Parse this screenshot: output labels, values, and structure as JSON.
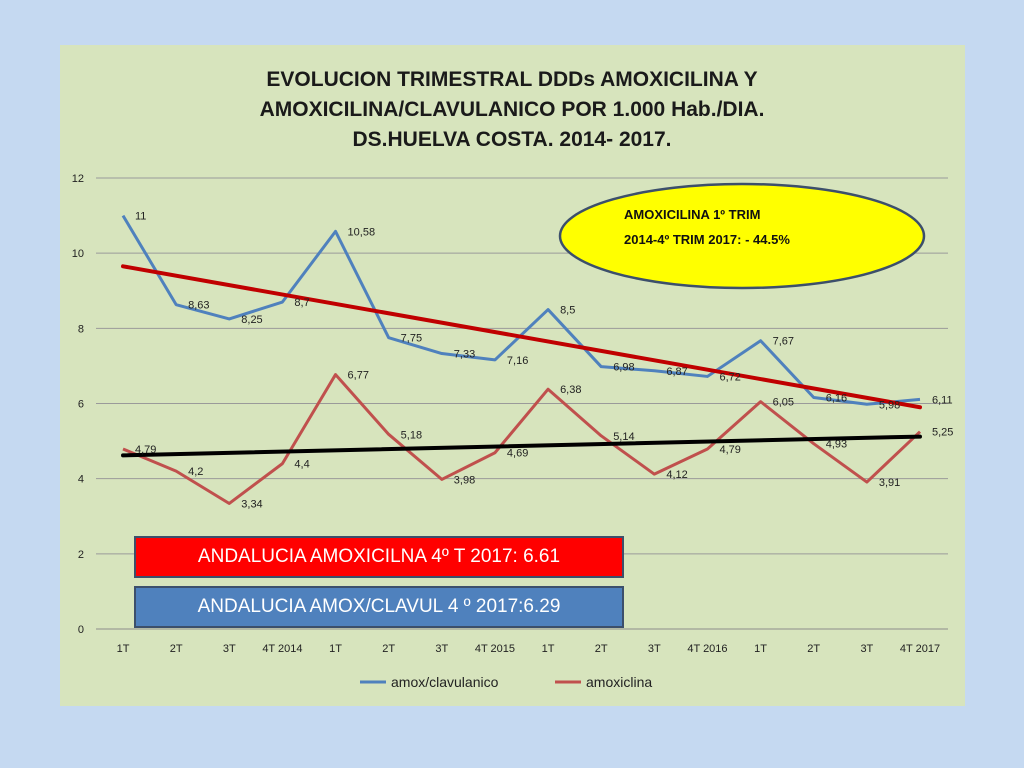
{
  "chart_data": {
    "type": "line",
    "title_lines": [
      "EVOLUCION TRIMESTRAL DDDs AMOXICILINA Y",
      "AMOXICILINA/CLAVULANICO POR 1.000 Hab./DIA.",
      "DS.HUELVA COSTA. 2014- 2017."
    ],
    "categories": [
      "1T",
      "2T",
      "3T",
      "4T 2014",
      "1T",
      "2T",
      "3T",
      "4T 2015",
      "1T",
      "2T",
      "3T",
      "4T 2016",
      "1T",
      "2T",
      "3T",
      "4T 2017"
    ],
    "ylim": [
      0,
      12
    ],
    "yticks": [
      0,
      2,
      4,
      6,
      8,
      10,
      12
    ],
    "grid": true,
    "legend_position": "bottom",
    "series": [
      {
        "name": "amox/clavulanico",
        "color": "#4f81bd",
        "values": [
          11,
          8.63,
          8.25,
          8.7,
          10.58,
          7.75,
          7.33,
          7.16,
          8.5,
          6.98,
          6.87,
          6.72,
          7.67,
          6.16,
          5.98,
          6.11
        ],
        "labels": [
          "11",
          "8,63",
          "8,25",
          "8,7",
          "10,58",
          "7,75",
          "7,33",
          "7,16",
          "8,5",
          "6,98",
          "6,87",
          "6,72",
          "7,67",
          "6,16",
          "5,98",
          "6,11"
        ]
      },
      {
        "name": "amoxiclina",
        "color": "#c0504d",
        "values": [
          4.79,
          4.2,
          3.34,
          4.4,
          6.77,
          5.18,
          3.98,
          4.69,
          6.38,
          5.14,
          4.12,
          4.79,
          6.05,
          4.93,
          3.91,
          5.25
        ],
        "labels": [
          "4,79",
          "4,2",
          "3,34",
          "4,4",
          "6,77",
          "5,18",
          "3,98",
          "4,69",
          "6,38",
          "5,14",
          "4,12",
          "4,79",
          "6,05",
          "4,93",
          "3,91",
          "5,25"
        ]
      }
    ],
    "trendlines": [
      {
        "series": "amox/clavulanico",
        "color": "#c00000",
        "start": 9.65,
        "end": 5.9
      },
      {
        "series": "amoxiclina",
        "color": "#000000",
        "start": 4.62,
        "end": 5.12
      }
    ],
    "callout": {
      "lines": [
        "AMOXICILINA 1º TRIM",
        "2014-4º TRIM 2017: - 44.5%"
      ],
      "fill": "#ffff00",
      "stroke": "#3c4f6b"
    }
  },
  "boxes": {
    "amox": {
      "text": "ANDALUCIA AMOXICILNA 4º T 2017: 6.61",
      "color": "#ff0000"
    },
    "clav": {
      "text": "ANDALUCIA AMOX/CLAVUL 4 º 2017:6.29",
      "color": "#4f81bd"
    }
  }
}
